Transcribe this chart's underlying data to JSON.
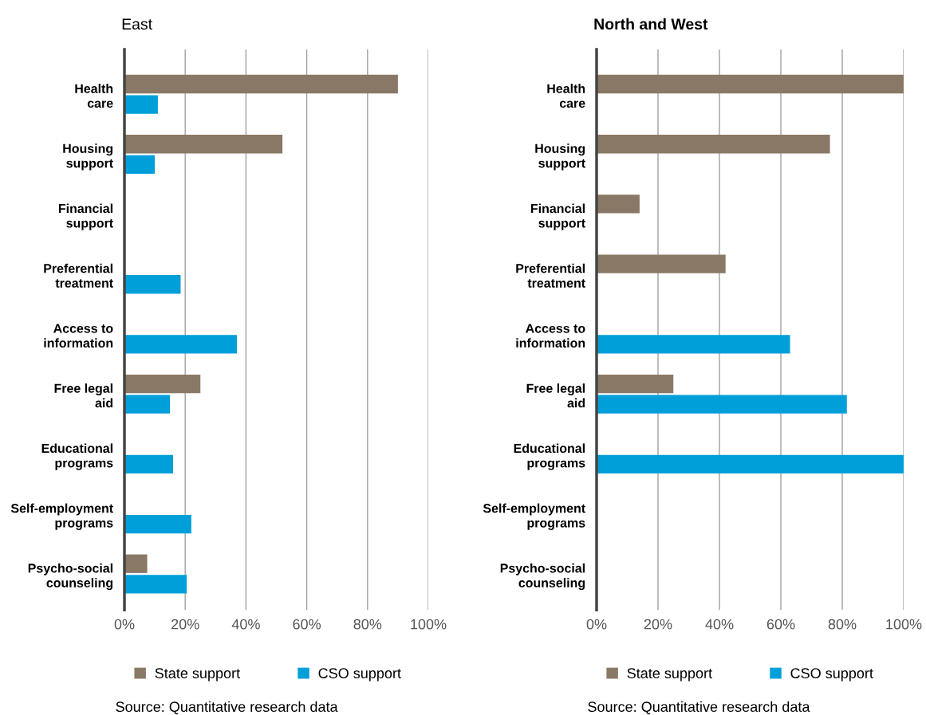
{
  "chart_data": [
    {
      "type": "bar",
      "orientation": "horizontal",
      "title": "East",
      "categories": [
        "Health\ncare",
        "Housing\nsupport",
        "Financial\nsupport",
        "Preferential\ntreatment",
        "Access to\ninformation",
        "Free legal\naid",
        "Educational\nprograms",
        "Self-employment\nprograms",
        "Psycho-social\ncounseling"
      ],
      "series": [
        {
          "name": "State support",
          "color": "#8a7866",
          "values": [
            90,
            52,
            0,
            0,
            0,
            25,
            0,
            0,
            7.5
          ]
        },
        {
          "name": "CSO support",
          "color": "#009fda",
          "values": [
            11,
            10,
            0,
            18.5,
            37,
            15,
            16,
            22,
            20.5
          ]
        }
      ],
      "xlim": [
        0,
        100
      ],
      "xticks": [
        {
          "value": 0,
          "label": "0%"
        },
        {
          "value": 20,
          "label": "20%"
        },
        {
          "value": 40,
          "label": "40%"
        },
        {
          "value": 60,
          "label": "60%"
        },
        {
          "value": 80,
          "label": "80%"
        },
        {
          "value": 100,
          "label": "100%"
        }
      ],
      "grid": "x",
      "legend": "bottom",
      "annotations": [
        "Source: Quantitative research data"
      ]
    },
    {
      "type": "bar",
      "orientation": "horizontal",
      "title": "North and West",
      "categories": [
        "Health\ncare",
        "Housing\nsupport",
        "Financial\nsupport",
        "Preferential\ntreatment",
        "Access to\ninformation",
        "Free legal\naid",
        "Educational\nprograms",
        "Self-employment\nprograms",
        "Psycho-social\ncounseling"
      ],
      "series": [
        {
          "name": "State support",
          "color": "#8a7866",
          "values": [
            100,
            76,
            14,
            42,
            0,
            25,
            0,
            0,
            0
          ]
        },
        {
          "name": "CSO support",
          "color": "#009fda",
          "values": [
            0,
            0,
            0,
            0,
            63,
            81.5,
            100,
            0,
            0
          ]
        }
      ],
      "xlim": [
        0,
        100
      ],
      "xticks": [
        {
          "value": 0,
          "label": "0%"
        },
        {
          "value": 20,
          "label": "20%"
        },
        {
          "value": 40,
          "label": "40%"
        },
        {
          "value": 60,
          "label": "60%"
        },
        {
          "value": 80,
          "label": "80%"
        },
        {
          "value": 100,
          "label": "100%"
        }
      ],
      "grid": "x",
      "legend": "bottom",
      "annotations": [
        "Source: Quantitative research data"
      ]
    }
  ]
}
